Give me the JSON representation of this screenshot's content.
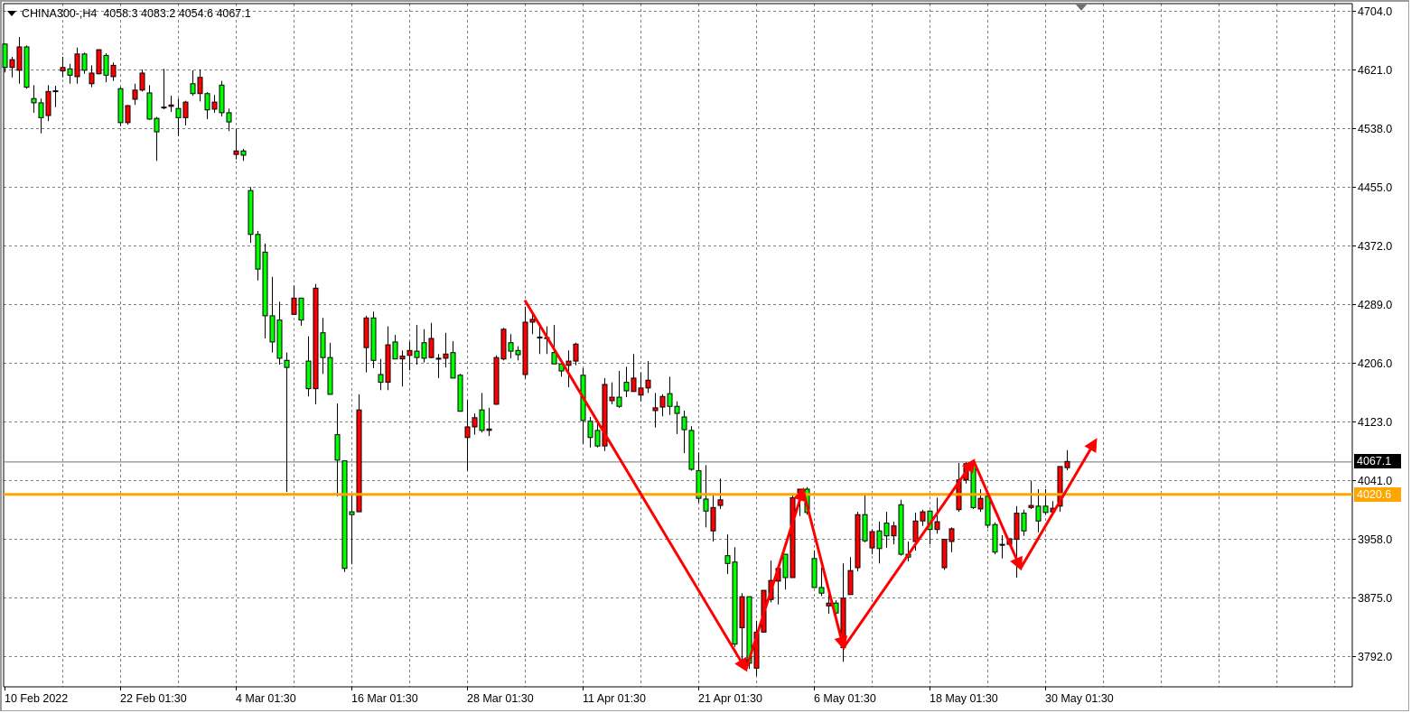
{
  "header": {
    "symbol_timeframe": "CHINA300-,H4",
    "ohlc_text": "4058.3 4083.2 4054.6 4067.1"
  },
  "chart_data": {
    "type": "candlestick",
    "symbol": "CHINA300-",
    "timeframe": "H4",
    "last_bar": {
      "open": 4058.3,
      "high": 4083.2,
      "low": 4054.6,
      "close": 4067.1
    },
    "ylim": [
      3770,
      4712
    ],
    "y_ticks": [
      "4704.0",
      "4621.0",
      "4538.0",
      "4455.0",
      "4372.0",
      "4289.0",
      "4206.0",
      "4123.0",
      "4041.0",
      "3958.0",
      "3875.0",
      "3792.0"
    ],
    "x_ticks": [
      {
        "bar": 0,
        "label": "10 Feb 2022"
      },
      {
        "bar": 16,
        "label": "22 Feb 01:30"
      },
      {
        "bar": 32,
        "label": "4 Mar 01:30"
      },
      {
        "bar": 48,
        "label": "16 Mar 01:30"
      },
      {
        "bar": 64,
        "label": "28 Mar 01:30"
      },
      {
        "bar": 80,
        "label": "11 Apr 01:30"
      },
      {
        "bar": 96,
        "label": "21 Apr 01:30"
      },
      {
        "bar": 112,
        "label": "6 May 01:30"
      },
      {
        "bar": 128,
        "label": "18 May 01:30"
      },
      {
        "bar": 144,
        "label": "30 May 01:30"
      }
    ],
    "grid": true,
    "colors": {
      "bull": "#ff0000",
      "bear": "#00ff00",
      "outline": "#000000",
      "grid": "#808080",
      "level_line": "#ffa500",
      "price_line": "#707070",
      "annotation": "#ff0000"
    },
    "candles_ohlc": [
      [
        4657,
        4658,
        4617,
        4624
      ],
      [
        4624,
        4639,
        4610,
        4635
      ],
      [
        4620,
        4667,
        4601,
        4653
      ],
      [
        4653,
        4655,
        4594,
        4596
      ],
      [
        4580,
        4599,
        4560,
        4574
      ],
      [
        4574,
        4580,
        4531,
        4553
      ],
      [
        4556,
        4599,
        4548,
        4590
      ],
      [
        4590,
        4598,
        4568,
        4591
      ],
      [
        4619,
        4639,
        4610,
        4624
      ],
      [
        4622,
        4629,
        4601,
        4613
      ],
      [
        4611,
        4652,
        4601,
        4643
      ],
      [
        4643,
        4645,
        4615,
        4620
      ],
      [
        4601,
        4627,
        4596,
        4616
      ],
      [
        4615,
        4650,
        4614,
        4649
      ],
      [
        4641,
        4644,
        4603,
        4613
      ],
      [
        4611,
        4631,
        4605,
        4627
      ],
      [
        4594,
        4596,
        4541,
        4546
      ],
      [
        4546,
        4571,
        4543,
        4570
      ],
      [
        4579,
        4601,
        4571,
        4592
      ],
      [
        4592,
        4621,
        4590,
        4616
      ],
      [
        4588,
        4599,
        4550,
        4551
      ],
      [
        4552,
        4554,
        4492,
        4533
      ],
      [
        4568,
        4622,
        4565,
        4567
      ],
      [
        4569,
        4584,
        4561,
        4571
      ],
      [
        4566,
        4580,
        4527,
        4553
      ],
      [
        4553,
        4577,
        4542,
        4575
      ],
      [
        4601,
        4620,
        4584,
        4587
      ],
      [
        4587,
        4621,
        4576,
        4610
      ],
      [
        4587,
        4589,
        4551,
        4564
      ],
      [
        4565,
        4585,
        4560,
        4575
      ],
      [
        4599,
        4605,
        4555,
        4560
      ],
      [
        4560,
        4566,
        4534,
        4547
      ],
      [
        4501,
        4537,
        4494,
        4506
      ],
      [
        4506,
        4509,
        4492,
        4500
      ],
      [
        4450,
        4455,
        4376,
        4388
      ],
      [
        4388,
        4393,
        4323,
        4339
      ],
      [
        4363,
        4375,
        4241,
        4273
      ],
      [
        4273,
        4328,
        4221,
        4236
      ],
      [
        4267,
        4293,
        4204,
        4213
      ],
      [
        4210,
        4221,
        4024,
        4200
      ],
      [
        4275,
        4316,
        4274,
        4298
      ],
      [
        4298,
        4298,
        4259,
        4267
      ],
      [
        4209,
        4244,
        4159,
        4170
      ],
      [
        4170,
        4318,
        4148,
        4312
      ],
      [
        4249,
        4270,
        4191,
        4214
      ],
      [
        4214,
        4235,
        4162,
        4162
      ],
      [
        4105,
        4149,
        4018,
        4069
      ],
      [
        4068,
        4068,
        3911,
        3916
      ],
      [
        3996,
        4022,
        3922,
        3992
      ],
      [
        3996,
        4162,
        3996,
        4140
      ],
      [
        4228,
        4273,
        4193,
        4270
      ],
      [
        4270,
        4279,
        4199,
        4210
      ],
      [
        4190,
        4212,
        4168,
        4179
      ],
      [
        4179,
        4258,
        4168,
        4232
      ],
      [
        4236,
        4246,
        4212,
        4212
      ],
      [
        4212,
        4224,
        4173,
        4216
      ],
      [
        4217,
        4236,
        4196,
        4224
      ],
      [
        4223,
        4260,
        4204,
        4214
      ],
      [
        4235,
        4254,
        4207,
        4213
      ],
      [
        4214,
        4263,
        4213,
        4241
      ],
      [
        4213,
        4219,
        4185,
        4213
      ],
      [
        4213,
        4249,
        4200,
        4219
      ],
      [
        4221,
        4237,
        4185,
        4185
      ],
      [
        4189,
        4191,
        4138,
        4138
      ],
      [
        4101,
        4154,
        4054,
        4116
      ],
      [
        4116,
        4135,
        4105,
        4129
      ],
      [
        4140,
        4164,
        4108,
        4111
      ],
      [
        4111,
        4143,
        4103,
        4113
      ],
      [
        4148,
        4217,
        4147,
        4214
      ],
      [
        4212,
        4256,
        4210,
        4254
      ],
      [
        4235,
        4247,
        4213,
        4223
      ],
      [
        4224,
        4230,
        4210,
        4218
      ],
      [
        4190,
        4286,
        4184,
        4264
      ],
      [
        4264,
        4274,
        4247,
        4268
      ],
      [
        4243,
        4260,
        4219,
        4242
      ],
      [
        4242,
        4258,
        4219,
        4241
      ],
      [
        4221,
        4260,
        4205,
        4205
      ],
      [
        4205,
        4209,
        4187,
        4195
      ],
      [
        4203,
        4224,
        4172,
        4209
      ],
      [
        4209,
        4235,
        4203,
        4233
      ],
      [
        4189,
        4199,
        4092,
        4125
      ],
      [
        4124,
        4130,
        4087,
        4101
      ],
      [
        4111,
        4121,
        4087,
        4089
      ],
      [
        4089,
        4185,
        4082,
        4176
      ],
      [
        4153,
        4179,
        4148,
        4158
      ],
      [
        4158,
        4195,
        4143,
        4145
      ],
      [
        4179,
        4201,
        4158,
        4167
      ],
      [
        4166,
        4219,
        4166,
        4185
      ],
      [
        4161,
        4193,
        4152,
        4171
      ],
      [
        4171,
        4209,
        4164,
        4182
      ],
      [
        4139,
        4164,
        4115,
        4143
      ],
      [
        4144,
        4162,
        4131,
        4159
      ],
      [
        4163,
        4187,
        4133,
        4145
      ],
      [
        4145,
        4152,
        4106,
        4135
      ],
      [
        4130,
        4139,
        4079,
        4112
      ],
      [
        4111,
        4117,
        4054,
        4056
      ],
      [
        4054,
        4080,
        4009,
        4015
      ],
      [
        4014,
        4062,
        3974,
        3997
      ],
      [
        3969,
        4019,
        3954,
        4002
      ],
      [
        4005,
        4043,
        4000,
        4013
      ],
      [
        3934,
        3964,
        3908,
        3923
      ],
      [
        3925,
        3946,
        3805,
        3809
      ],
      [
        3832,
        3881,
        3784,
        3876
      ],
      [
        3876,
        3876,
        3774,
        3782
      ],
      [
        3775,
        3842,
        3764,
        3826
      ],
      [
        3826,
        3885,
        3825,
        3885
      ],
      [
        3872,
        3927,
        3868,
        3899
      ],
      [
        3898,
        3918,
        3865,
        3916
      ],
      [
        3936,
        3936,
        3886,
        3903
      ],
      [
        3903,
        4019,
        3903,
        4016
      ],
      [
        4018,
        4028,
        3990,
        4028
      ],
      [
        4028,
        4031,
        3992,
        3995
      ],
      [
        3930,
        3941,
        3889,
        3889
      ],
      [
        3889,
        3917,
        3877,
        3881
      ],
      [
        3863,
        3886,
        3852,
        3867
      ],
      [
        3867,
        3871,
        3851,
        3853
      ],
      [
        3804,
        3923,
        3784,
        3874
      ],
      [
        3879,
        3932,
        3879,
        3913
      ],
      [
        3917,
        3996,
        3912,
        3992
      ],
      [
        3992,
        4019,
        3953,
        3955
      ],
      [
        3945,
        3971,
        3936,
        3968
      ],
      [
        3969,
        3982,
        3923,
        3944
      ],
      [
        3980,
        3996,
        3945,
        3962
      ],
      [
        3962,
        3982,
        3950,
        3976
      ],
      [
        4006,
        4013,
        3934,
        3936
      ],
      [
        3936,
        3954,
        3926,
        3932
      ],
      [
        3954,
        3995,
        3941,
        3983
      ],
      [
        3983,
        3999,
        3976,
        3996
      ],
      [
        3997,
        3998,
        3950,
        3971
      ],
      [
        3971,
        4016,
        3965,
        3982
      ],
      [
        3917,
        3957,
        3914,
        3957
      ],
      [
        3954,
        3974,
        3939,
        3972
      ],
      [
        3999,
        4065,
        3996,
        4041
      ],
      [
        4041,
        4066,
        4036,
        4064
      ],
      [
        4064,
        4066,
        4000,
        4002
      ],
      [
        4000,
        4028,
        3996,
        4015
      ],
      [
        4018,
        4020,
        3973,
        3977
      ],
      [
        3978,
        3981,
        3936,
        3939
      ],
      [
        3950,
        3963,
        3930,
        3949
      ],
      [
        3950,
        3958,
        3949,
        3958
      ],
      [
        3957,
        4004,
        3903,
        3994
      ],
      [
        3994,
        3999,
        3962,
        3969
      ],
      [
        4002,
        4040,
        4000,
        4005
      ],
      [
        4004,
        4028,
        3967,
        3983
      ],
      [
        4004,
        4028,
        3992,
        3995
      ],
      [
        3996,
        4011,
        3996,
        4001
      ],
      [
        4004,
        4060,
        3996,
        4060
      ],
      [
        4058.3,
        4083.2,
        4054.6,
        4067.1
      ]
    ],
    "horizontal_level": {
      "price": 4020.6,
      "label": "4020.6"
    },
    "current_price": {
      "price": 4067.1,
      "label": "4067.1"
    },
    "annotation_zigzag": [
      {
        "bar": 72,
        "price": 4295
      },
      {
        "bar": 102.6,
        "price": 3773
      },
      {
        "bar": 110.5,
        "price": 4027
      },
      {
        "bar": 116.1,
        "price": 3804
      },
      {
        "bar": 134.1,
        "price": 4068
      },
      {
        "bar": 140.6,
        "price": 3916
      },
      {
        "bar": 151,
        "price": 4097
      }
    ]
  }
}
